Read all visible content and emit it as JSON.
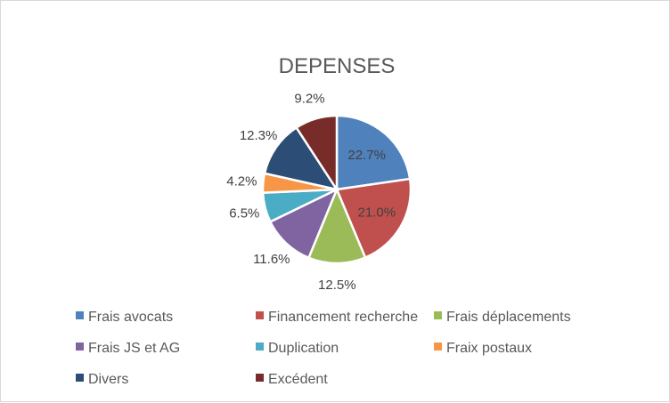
{
  "chart_data": {
    "type": "pie",
    "title": "DEPENSES",
    "categories": [
      "Frais avocats",
      "Financement recherche",
      "Frais déplacements",
      "Frais JS et AG",
      "Duplication",
      "Fraix postaux",
      "Divers",
      "Excédent"
    ],
    "values": [
      22.7,
      21.0,
      12.5,
      11.6,
      6.5,
      4.2,
      12.3,
      9.2
    ],
    "labels": [
      "22.7%",
      "21.0%",
      "12.5%",
      "11.6%",
      "6.5%",
      "4.2%",
      "12.3%",
      "9.2%"
    ],
    "unit": "%",
    "colors": [
      "#4f81bd",
      "#c0504d",
      "#9bbb59",
      "#8064a2",
      "#4bacc6",
      "#f79646",
      "#2c4d75",
      "#772c2a"
    ],
    "legend_position": "bottom",
    "data_label_position": [
      "inside",
      "inside",
      "outside",
      "outside",
      "outside",
      "outside",
      "outside",
      "outside"
    ]
  }
}
